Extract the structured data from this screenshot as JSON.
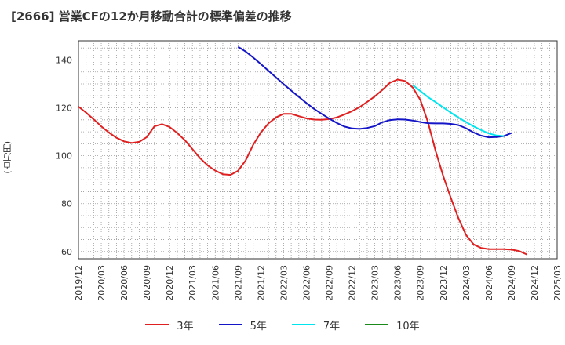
{
  "title": "[2666]  営業CFの12か月移動合計の標準偏差の推移",
  "chart_data": {
    "type": "line",
    "title": "[2666]  営業CFの12か月移動合計の標準偏差の推移",
    "xlabel": "",
    "ylabel": "(百万円)",
    "ylim": [
      57,
      148
    ],
    "yticks": [
      60,
      80,
      100,
      120,
      140
    ],
    "xticks": [
      "2019/12",
      "2020/03",
      "2020/06",
      "2020/09",
      "2020/12",
      "2021/03",
      "2021/06",
      "2021/09",
      "2021/12",
      "2022/03",
      "2022/06",
      "2022/09",
      "2022/12",
      "2023/03",
      "2023/06",
      "2023/09",
      "2023/12",
      "2024/03",
      "2024/06",
      "2024/09",
      "2024/12",
      "2025/03"
    ],
    "grid": true,
    "legend_position": "bottom",
    "x_start": "2019/12",
    "series": [
      {
        "name": "3年",
        "color": "#e02020",
        "start": "2019/12",
        "values": [
          120.5,
          118,
          115.2,
          112.3,
          109.7,
          107.5,
          106,
          105.3,
          105.8,
          107.8,
          112.3,
          113.2,
          112,
          109.5,
          106.5,
          102.8,
          99,
          96,
          93.8,
          92.3,
          92,
          93.7,
          98,
          104.6,
          109.7,
          113.5,
          116,
          117.5,
          117.5,
          116.5,
          115.6,
          115.1,
          115,
          115.3,
          116,
          117.2,
          118.6,
          120.3,
          122.5,
          124.8,
          127.5,
          130.5,
          131.8,
          131.2,
          128.5,
          123.3,
          114,
          102,
          91.5,
          82.5,
          74,
          67,
          63,
          61.5,
          61,
          61,
          61,
          60.8,
          60.2,
          58.8
        ]
      },
      {
        "name": "5年",
        "color": "#1515c8",
        "start": "2021/09",
        "values": [
          145.5,
          143.5,
          141,
          138.3,
          135.5,
          132.7,
          129.9,
          127.2,
          124.6,
          122,
          119.6,
          117.5,
          115.5,
          113.7,
          112.2,
          111.4,
          111.2,
          111.6,
          112.4,
          114,
          114.9,
          115.2,
          115.1,
          114.7,
          114.1,
          113.6,
          113.5,
          113.5,
          113.3,
          112.8,
          111.5,
          109.7,
          108.4,
          107.7,
          107.8,
          108.2,
          109.5
        ]
      },
      {
        "name": "7年",
        "color": "#00e5ee",
        "start": "2023/08",
        "values": [
          129.5,
          127,
          124.5,
          122.4,
          120.2,
          118,
          116,
          114.1,
          112.3,
          110.7,
          109.3,
          108.5,
          108.2
        ]
      },
      {
        "name": "10年",
        "color": "#1a8a1a",
        "start": "2023/08",
        "values": []
      }
    ]
  }
}
